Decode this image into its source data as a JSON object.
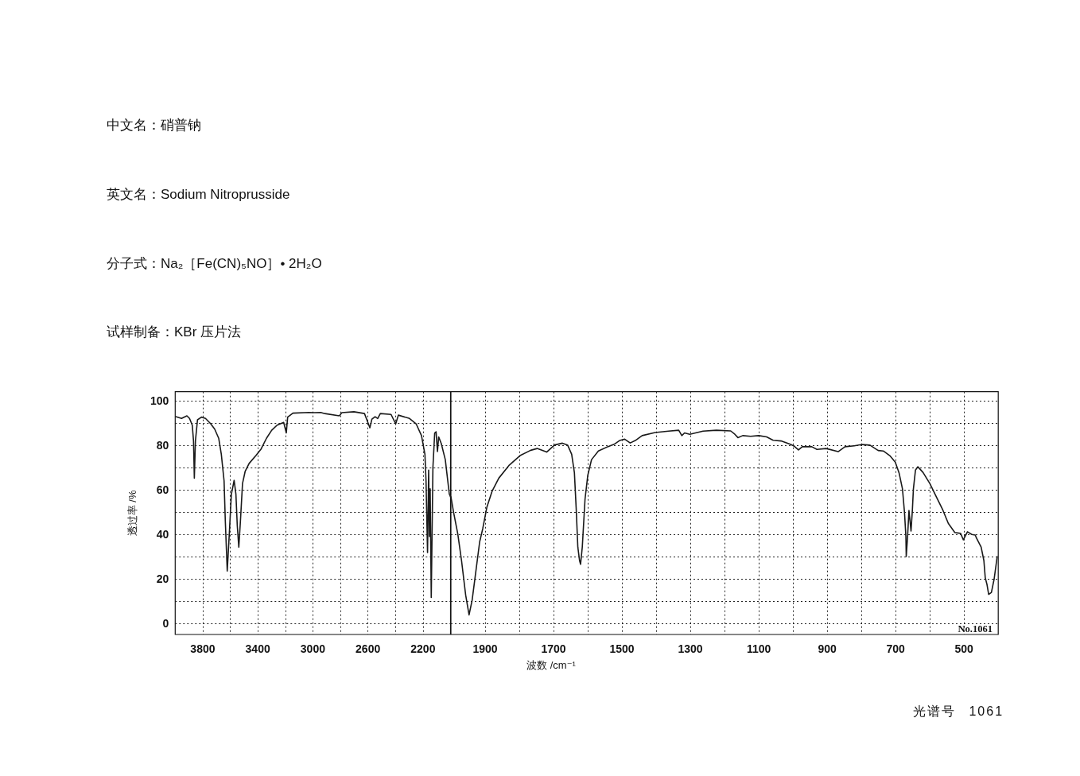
{
  "chart_data": [
    {
      "type": "line",
      "title": "中文名：硝普钠",
      "subtitle": "英文名：Sodium Nitroprusside",
      "annotations": [
        "分子式：Na₂［Fe(CN)₅NO］• 2H₂O",
        "试样制备：KBr 压片法"
      ],
      "ylabel": "透过率 /%",
      "x": [
        3996,
        3954,
        3915,
        3896,
        3876,
        3867,
        3861,
        3853,
        3838,
        3809,
        3780,
        3742,
        3713,
        3684,
        3665,
        3645,
        3636,
        3622,
        3607,
        3592,
        3572,
        3559,
        3549,
        3538,
        3526,
        3511,
        3492,
        3463,
        3414,
        3376,
        3337,
        3299,
        3260,
        3212,
        3193,
        3183,
        3145,
        3029,
        2991,
        2943,
        2914,
        2808,
        2789,
        2702,
        2625,
        2586,
        2571,
        2548,
        2529,
        2510,
        2432,
        2413,
        2398,
        2379,
        2298,
        2250,
        2211,
        2186,
        2178,
        2167,
        2159,
        2153,
        2148,
        2140,
        2128,
        2115,
        2105,
        2095,
        2086,
        2067,
        2038,
        2009,
        2000
      ],
      "values": [
        92.8,
        92,
        93.2,
        92,
        89,
        82,
        65.2,
        82,
        91.4,
        92.6,
        92,
        89.6,
        87.2,
        83.1,
        75.9,
        64,
        46,
        23.5,
        40.2,
        58,
        64.2,
        58,
        43.8,
        34.2,
        46.1,
        62.8,
        68.2,
        71.8,
        75.3,
        78.3,
        83.1,
        86.7,
        89,
        90.2,
        85.5,
        92.6,
        94.4,
        94.7,
        94.6,
        94.7,
        94.2,
        93.2,
        94.6,
        95,
        94.2,
        87.8,
        91.7,
        92.8,
        92,
        94.2,
        93.8,
        91.4,
        89.6,
        93.5,
        92,
        89.6,
        84.3,
        75.9,
        64,
        31.8,
        68.8,
        39,
        60.4,
        11.6,
        70,
        85.5,
        86,
        77.1,
        83.7,
        80.7,
        73.5,
        58.1,
        56.8
      ],
      "color": "#1a1a1a",
      "xlim": [
        4000,
        2000
      ],
      "xticks": [
        3800,
        {
          "value": 3600,
          "label": null
        },
        3400,
        {
          "value": 3200,
          "label": null
        },
        3000,
        {
          "value": 2800,
          "label": null
        },
        2600,
        {
          "value": 2400,
          "label": null
        },
        2200
      ],
      "ylim": [
        -5,
        104
      ],
      "yticks": [
        0,
        {
          "value": 10,
          "label": null
        },
        20,
        {
          "value": 30,
          "label": null
        },
        40,
        {
          "value": 50,
          "label": null
        },
        60,
        {
          "value": 70,
          "label": null
        },
        80,
        {
          "value": 90,
          "label": null
        },
        100
      ],
      "grid": true
    },
    {
      "type": "line",
      "xlabel": "波数 /cm⁻¹",
      "annotations": [
        "No.1061",
        "光谱号 1061"
      ],
      "x": [
        2000,
        1992,
        1980,
        1969,
        1957,
        1947,
        1938,
        1926,
        1916,
        1907,
        1895,
        1880,
        1860,
        1829,
        1798,
        1767,
        1748,
        1720,
        1697,
        1674,
        1659,
        1647,
        1639,
        1634,
        1629,
        1624,
        1621,
        1616,
        1608,
        1600,
        1589,
        1569,
        1542,
        1523,
        1507,
        1492,
        1476,
        1461,
        1441,
        1403,
        1364,
        1334,
        1325,
        1317,
        1302,
        1263,
        1224,
        1182,
        1170,
        1161,
        1147,
        1124,
        1100,
        1077,
        1058,
        1035,
        1008,
        996,
        984,
        973,
        945,
        930,
        903,
        868,
        848,
        821,
        798,
        775,
        751,
        736,
        717,
        701,
        690,
        680,
        674,
        670,
        669,
        665,
        661,
        658,
        655,
        651,
        648,
        642,
        635,
        620,
        600,
        581,
        562,
        546,
        527,
        510,
        502,
        490,
        477,
        467,
        464,
        450,
        442,
        438,
        433,
        428,
        420,
        412,
        403
      ],
      "values": [
        56.8,
        49.7,
        40.2,
        28.2,
        12.8,
        3.8,
        10.4,
        24.7,
        36.6,
        42.5,
        52.1,
        59.2,
        65.2,
        71.1,
        75.3,
        77.7,
        78.5,
        76.9,
        80.1,
        80.9,
        80.1,
        75.9,
        67.6,
        52.1,
        34.2,
        28.2,
        26.5,
        34.2,
        55.7,
        66.4,
        73.5,
        77.4,
        79.3,
        80.4,
        82.1,
        82.7,
        81,
        82.1,
        84.3,
        85.7,
        86.3,
        86.7,
        84.3,
        85.5,
        84.9,
        86.3,
        86.7,
        86.4,
        84.9,
        83.4,
        84.3,
        84,
        84.3,
        83.7,
        82.2,
        81.9,
        80.4,
        79.5,
        77.9,
        79.3,
        79.3,
        78.1,
        78.5,
        77.1,
        79.3,
        79.7,
        80.3,
        80,
        77.6,
        77.4,
        75.3,
        72.4,
        67.6,
        60.4,
        49.7,
        39,
        30,
        39,
        50.7,
        46.1,
        41.4,
        50.9,
        60.4,
        68.8,
        70.3,
        67.8,
        62.8,
        56.8,
        50.9,
        44.9,
        40.8,
        40.4,
        37.5,
        41.1,
        39.9,
        39.6,
        38.4,
        34.2,
        28.2,
        20.5,
        17.5,
        13,
        13.9,
        19.9,
        30
      ],
      "color": "#1a1a1a",
      "xlim": [
        2000,
        400
      ],
      "xticks": [
        1900,
        {
          "value": 1800,
          "label": null
        },
        1700,
        {
          "value": 1600,
          "label": null
        },
        1500,
        {
          "value": 1400,
          "label": null
        },
        1300,
        {
          "value": 1200,
          "label": null
        },
        1100,
        {
          "value": 1000,
          "label": null
        },
        900,
        {
          "value": 800,
          "label": null
        },
        700,
        {
          "value": 600,
          "label": null
        },
        500
      ],
      "ylim": [
        -5,
        104
      ],
      "yticks": [
        0,
        {
          "value": 10,
          "label": null
        },
        20,
        {
          "value": 30,
          "label": null
        },
        40,
        {
          "value": 50,
          "label": null
        },
        60,
        {
          "value": 70,
          "label": null
        },
        80,
        {
          "value": 90,
          "label": null
        },
        100
      ],
      "grid": true,
      "tick_labels": "x"
    }
  ]
}
